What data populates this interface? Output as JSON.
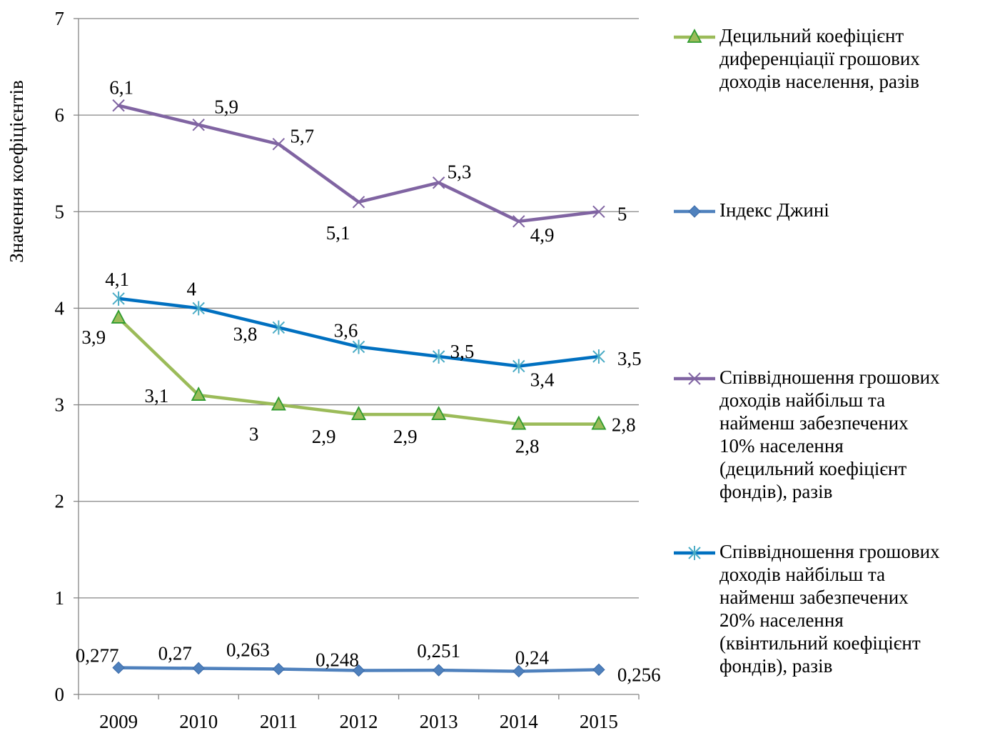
{
  "chart_data": {
    "type": "line",
    "title": "",
    "xlabel": "",
    "ylabel": "Значення коефіцієнтів",
    "ylim": [
      0,
      7
    ],
    "yticks": [
      0,
      1,
      2,
      3,
      4,
      5,
      6,
      7
    ],
    "grid": true,
    "legend_position": "right",
    "categories": [
      "2009",
      "2010",
      "2011",
      "2012",
      "2013",
      "2014",
      "2015"
    ],
    "series": [
      {
        "name": "Децильний коефіцієнт диференціації грошових доходів населення, разів",
        "color": "#9BBB59",
        "marker": "triangle",
        "values": [
          3.9,
          3.1,
          3.0,
          2.9,
          2.9,
          2.8,
          2.8
        ],
        "labels": [
          "3,9",
          "3,1",
          "3",
          "2,9",
          "2,9",
          "2,8",
          "2,8"
        ]
      },
      {
        "name": "Індекс Джині",
        "color": "#4F81BD",
        "marker": "diamond",
        "values": [
          0.277,
          0.27,
          0.263,
          0.248,
          0.251,
          0.24,
          0.256
        ],
        "labels": [
          "0,277",
          "0,27",
          "0,263",
          "0,248",
          "0,251",
          "0,24",
          "0,256"
        ]
      },
      {
        "name": "Співвідношення грошових доходів найбільш та найменш забезпечених 10% населення (децильний коефіцієнт фондів), разів",
        "color": "#8064A2",
        "marker": "x",
        "values": [
          6.1,
          5.9,
          5.7,
          5.1,
          5.3,
          4.9,
          5.0
        ],
        "labels": [
          "6,1",
          "5,9",
          "5,7",
          "5,1",
          "5,3",
          "4,9",
          "5"
        ]
      },
      {
        "name": "Співвідношення грошових доходів найбільш та найменш забезпечених 20% населення (квінтильний коефіцієнт фондів), разів",
        "color": "#0070C0",
        "marker": "star",
        "values": [
          4.1,
          4.0,
          3.8,
          3.6,
          3.5,
          3.4,
          3.5
        ],
        "labels": [
          "4,1",
          "4",
          "3,8",
          "3,6",
          "3,5",
          "3,4",
          "3,5"
        ]
      }
    ]
  },
  "legend": {
    "items": [
      "Децильний коефіцієнт\nдиференціації грошових\nдоходів населення, разів",
      "Індекс Джині",
      "Співвідношення грошових\nдоходів найбільш та\nнайменш забезпечених\n10% населення\n(децильний коефіцієнт\nфондів), разів",
      "Співвідношення грошових\nдоходів найбільш та\nнайменш забезпечених\n20% населення\n(квінтильний коефіцієнт\nфондів), разів"
    ]
  }
}
